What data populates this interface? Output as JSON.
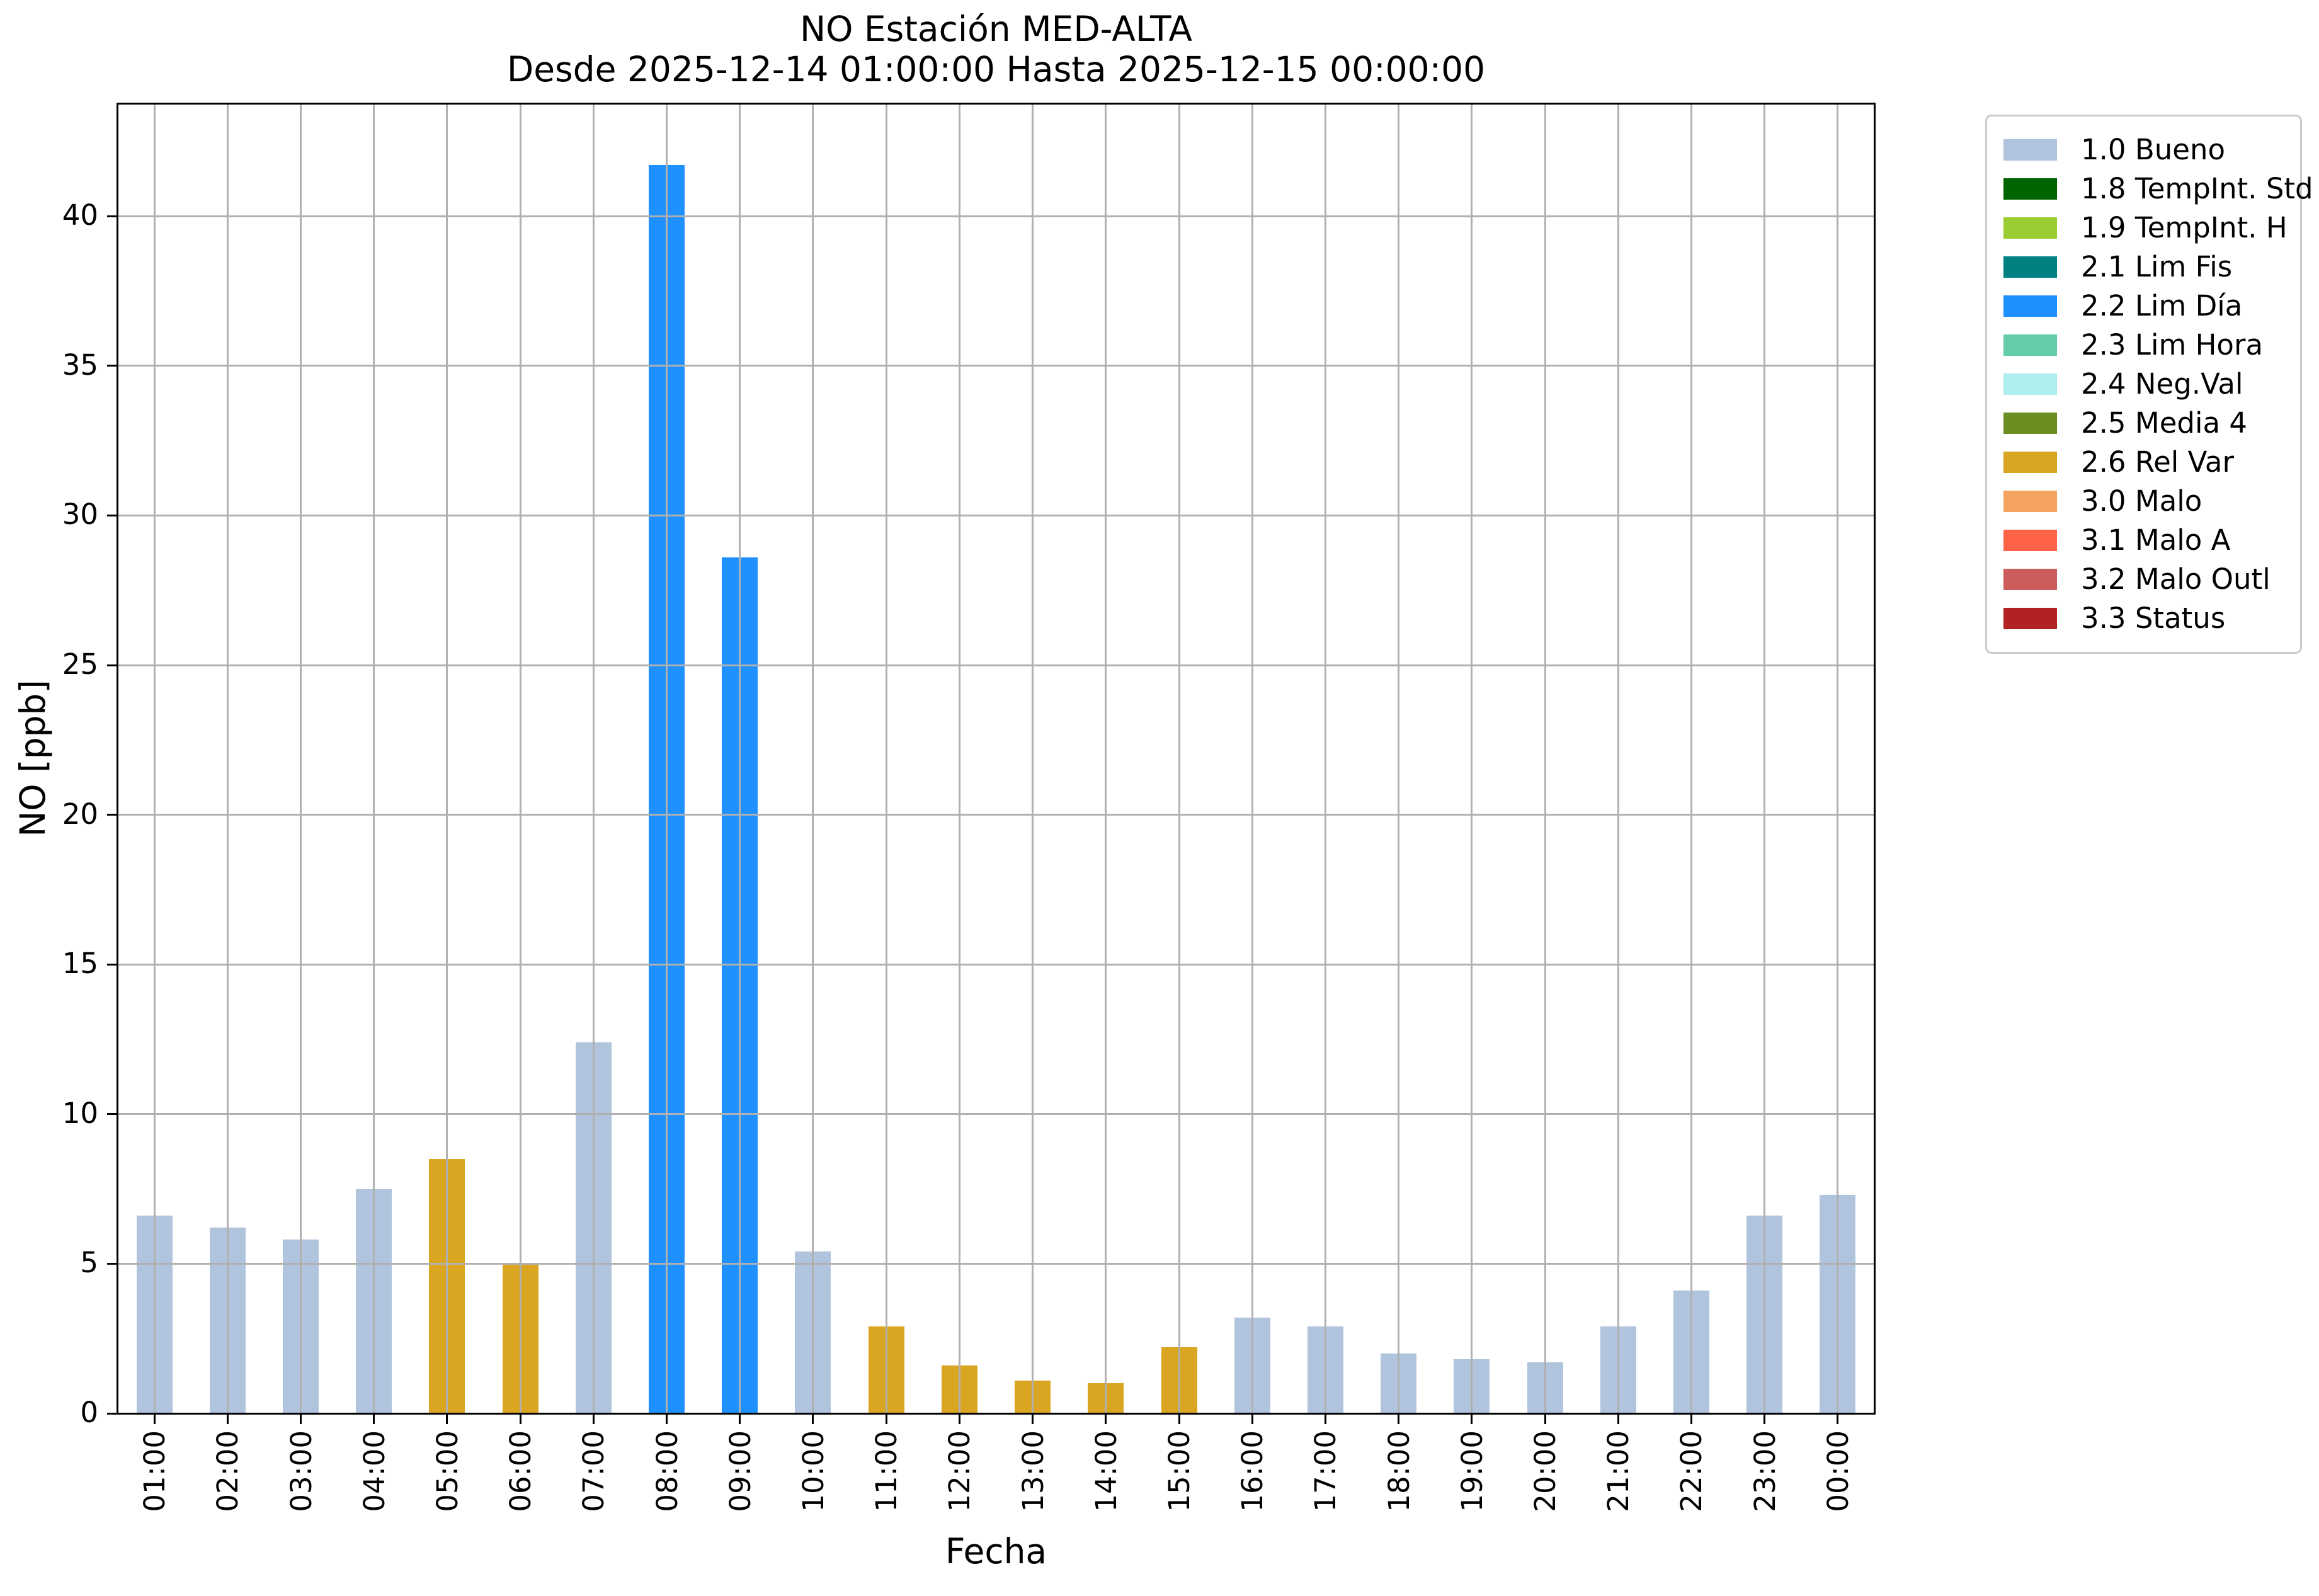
{
  "chart_data": {
    "type": "bar",
    "title": "NO Estación MED-ALTA",
    "subtitle": "Desde 2025-12-14 01:00:00 Hasta 2025-12-15 00:00:00",
    "xlabel": "Fecha",
    "ylabel": "NO [ppb]",
    "ylim": [
      0,
      43.75
    ],
    "yticks": [
      0,
      5,
      10,
      15,
      20,
      25,
      30,
      35,
      40
    ],
    "grid": true,
    "grid_color": "#b0b0b0",
    "legend_position": "outside-right",
    "categories": [
      "01:00",
      "02:00",
      "03:00",
      "04:00",
      "05:00",
      "06:00",
      "07:00",
      "08:00",
      "09:00",
      "10:00",
      "11:00",
      "12:00",
      "13:00",
      "14:00",
      "15:00",
      "16:00",
      "17:00",
      "18:00",
      "19:00",
      "20:00",
      "21:00",
      "22:00",
      "23:00",
      "00:00"
    ],
    "values": [
      6.6,
      6.2,
      5.8,
      7.5,
      8.5,
      5.0,
      12.4,
      41.7,
      28.6,
      5.4,
      2.9,
      1.6,
      1.1,
      1.0,
      2.2,
      3.2,
      2.9,
      2.0,
      1.8,
      1.7,
      2.9,
      4.1,
      6.6,
      7.3
    ],
    "bar_flags": [
      "1.0 Bueno",
      "1.0 Bueno",
      "1.0 Bueno",
      "1.0 Bueno",
      "2.6 Rel Var",
      "2.6 Rel Var",
      "1.0 Bueno",
      "2.2 Lim Día",
      "2.2 Lim Día",
      "1.0 Bueno",
      "2.6 Rel Var",
      "2.6 Rel Var",
      "2.6 Rel Var",
      "2.6 Rel Var",
      "2.6 Rel Var",
      "1.0 Bueno",
      "1.0 Bueno",
      "1.0 Bueno",
      "1.0 Bueno",
      "1.0 Bueno",
      "1.0 Bueno",
      "1.0 Bueno",
      "1.0 Bueno",
      "1.0 Bueno"
    ],
    "legend": [
      {
        "label": "1.0 Bueno",
        "color": "#b0c4de"
      },
      {
        "label": "1.8 TempInt. Std",
        "color": "#006400"
      },
      {
        "label": "1.9 TempInt. H",
        "color": "#9acd32"
      },
      {
        "label": "2.1 Lim Fis",
        "color": "#008080"
      },
      {
        "label": "2.2 Lim Día",
        "color": "#1e90ff"
      },
      {
        "label": "2.3 Lim Hora",
        "color": "#66cdaa"
      },
      {
        "label": "2.4 Neg.Val",
        "color": "#afeeee"
      },
      {
        "label": "2.5 Media 4",
        "color": "#6b8e23"
      },
      {
        "label": "2.6 Rel Var",
        "color": "#daa520"
      },
      {
        "label": "3.0 Malo",
        "color": "#f4a460"
      },
      {
        "label": "3.1 Malo A",
        "color": "#ff6347"
      },
      {
        "label": "3.2 Malo Outl",
        "color": "#cd5c5c"
      },
      {
        "label": "3.3 Status",
        "color": "#b22222"
      }
    ]
  },
  "colors": {
    "axis": "#000000",
    "grid": "#b0b0b0",
    "background": "#ffffff",
    "legend_border": "#cbcbcb"
  }
}
